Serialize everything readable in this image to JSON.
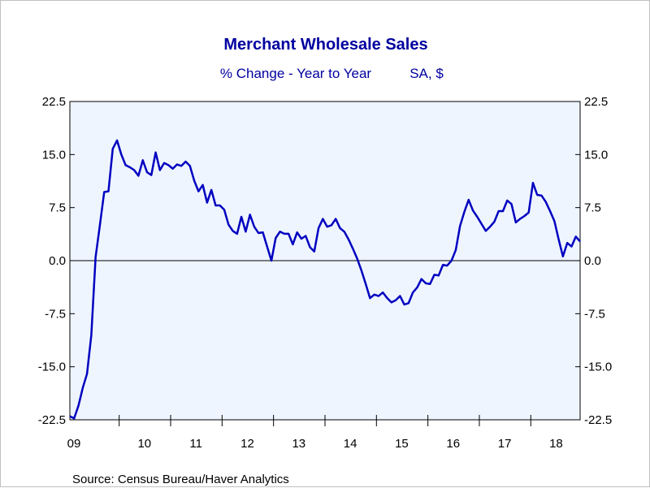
{
  "chart_data": {
    "type": "line",
    "title": "Merchant Wholesale Sales",
    "subtitle_left": "% Change - Year to Year",
    "subtitle_right": "SA, $",
    "source": "Source:  Census Bureau/Haver Analytics",
    "xlabel": "",
    "ylabel": "",
    "ylim": [
      -22.5,
      22.5
    ],
    "y_ticks": [
      22.5,
      15.0,
      7.5,
      0.0,
      -7.5,
      -15.0,
      -22.5
    ],
    "y_tick_labels": [
      "22.5",
      "15.0",
      "7.5",
      "0.0",
      "-7.5",
      "-15.0",
      "-22.5"
    ],
    "x_start_year": 2009,
    "x_end_year": 2018.917,
    "x_tick_labels": [
      "09",
      "10",
      "11",
      "12",
      "13",
      "14",
      "15",
      "16",
      "17",
      "18"
    ],
    "zero_line": true,
    "grid": false,
    "colors": {
      "text": "#0000a0",
      "line": "#0000c0",
      "plot_bg": "#eef5ff"
    },
    "series": [
      {
        "x": [
          2009.0,
          2009.083,
          2009.167,
          2009.25,
          2009.333,
          2009.417,
          2009.5,
          2009.583,
          2009.667,
          2009.75,
          2009.833,
          2009.917,
          2010.0,
          2010.083,
          2010.167,
          2010.25,
          2010.333,
          2010.417,
          2010.5,
          2010.583,
          2010.667,
          2010.75,
          2010.833,
          2010.917,
          2011.0,
          2011.083,
          2011.167,
          2011.25,
          2011.333,
          2011.417,
          2011.5,
          2011.583,
          2011.667,
          2011.75,
          2011.833,
          2011.917,
          2012.0,
          2012.083,
          2012.167,
          2012.25,
          2012.333,
          2012.417,
          2012.5,
          2012.583,
          2012.667,
          2012.75,
          2012.833,
          2012.917,
          2013.0,
          2013.083,
          2013.167,
          2013.25,
          2013.333,
          2013.417,
          2013.5,
          2013.583,
          2013.667,
          2013.75,
          2013.833,
          2013.917,
          2014.0,
          2014.083,
          2014.167,
          2014.25,
          2014.333,
          2014.417,
          2014.5,
          2014.583,
          2014.667,
          2014.75,
          2014.833,
          2014.917,
          2015.0,
          2015.083,
          2015.167,
          2015.25,
          2015.333,
          2015.417,
          2015.5,
          2015.583,
          2015.667,
          2015.75,
          2015.833,
          2015.917,
          2016.0,
          2016.083,
          2016.167,
          2016.25,
          2016.333,
          2016.417,
          2016.5,
          2016.583,
          2016.667,
          2016.75,
          2016.833,
          2016.917,
          2017.0,
          2017.083,
          2017.167,
          2017.25,
          2017.333,
          2017.417,
          2017.5,
          2017.583,
          2017.667,
          2017.75,
          2017.833,
          2017.917,
          2018.0,
          2018.083,
          2018.167,
          2018.25,
          2018.333,
          2018.417,
          2018.5,
          2018.583,
          2018.667,
          2018.75,
          2018.833,
          2018.917
        ],
        "y": [
          -22.0,
          -22.3,
          -20.5,
          -18.0,
          -16.0,
          -10.5,
          0.5,
          5.0,
          9.7,
          9.8,
          15.8,
          17.0,
          15.0,
          13.5,
          13.2,
          12.8,
          12.0,
          14.2,
          12.5,
          12.1,
          15.3,
          12.8,
          13.8,
          13.5,
          13.0,
          13.6,
          13.4,
          14.0,
          13.4,
          11.3,
          9.8,
          10.7,
          8.2,
          10.0,
          7.8,
          7.8,
          7.2,
          5.1,
          4.2,
          3.8,
          6.2,
          4.1,
          6.5,
          4.8,
          3.9,
          4.0,
          2.0,
          0.0,
          3.2,
          4.1,
          3.8,
          3.8,
          2.3,
          4.0,
          3.1,
          3.5,
          1.9,
          1.3,
          4.6,
          5.9,
          4.8,
          5.0,
          5.9,
          4.6,
          4.1,
          3.0,
          1.7,
          0.3,
          -1.4,
          -3.3,
          -5.3,
          -4.8,
          -5.0,
          -4.5,
          -5.3,
          -5.9,
          -5.6,
          -5.0,
          -6.2,
          -6.0,
          -4.5,
          -3.8,
          -2.6,
          -3.2,
          -3.3,
          -2.0,
          -2.1,
          -0.6,
          -0.7,
          0.0,
          1.5,
          4.9,
          6.9,
          8.6,
          7.1,
          6.2,
          5.2,
          4.2,
          4.8,
          5.5,
          7.0,
          7.0,
          8.5,
          8.0,
          5.4,
          5.9,
          6.3,
          6.8,
          11.0,
          9.3,
          9.2,
          8.3,
          7.0,
          5.6,
          3.0,
          0.6,
          2.5,
          2.0,
          3.4,
          2.7
        ]
      }
    ]
  }
}
